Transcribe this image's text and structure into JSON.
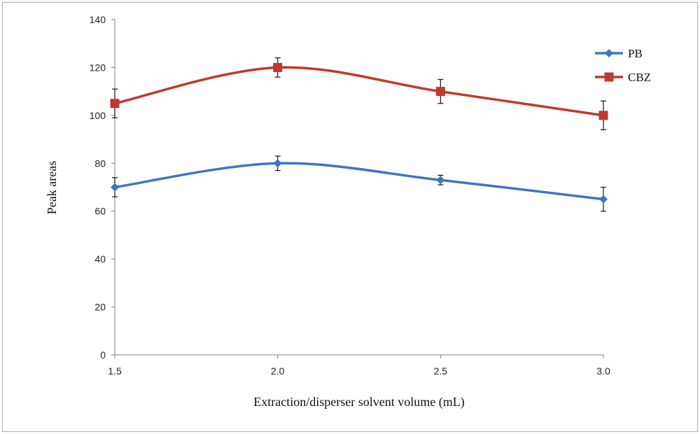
{
  "chart_data": {
    "type": "line",
    "title": "",
    "xlabel": "Extraction/disperser solvent volume (mL)",
    "ylabel": "Peak areas",
    "x": [
      1.5,
      2.0,
      2.5,
      3.0
    ],
    "x_tick_labels": [
      "1.5",
      "2.0",
      "2.5",
      "3.0"
    ],
    "xlim": [
      1.5,
      3.0
    ],
    "ylim": [
      0,
      140
    ],
    "y_ticks": [
      0,
      20,
      40,
      60,
      80,
      100,
      120,
      140
    ],
    "y_tick_labels": [
      "0",
      "20",
      "40",
      "60",
      "80",
      "100",
      "120",
      "140"
    ],
    "grid": false,
    "legend_position": "top-right",
    "series": [
      {
        "name": "PB",
        "color": "#4472c4",
        "marker": "diamond",
        "values": [
          70,
          80,
          73,
          65
        ],
        "error": [
          4,
          3,
          2,
          5
        ]
      },
      {
        "name": "CBZ",
        "color": "#c0392b",
        "marker": "square",
        "values": [
          105,
          120,
          110,
          100
        ],
        "error": [
          6,
          4,
          5,
          6
        ]
      }
    ]
  }
}
